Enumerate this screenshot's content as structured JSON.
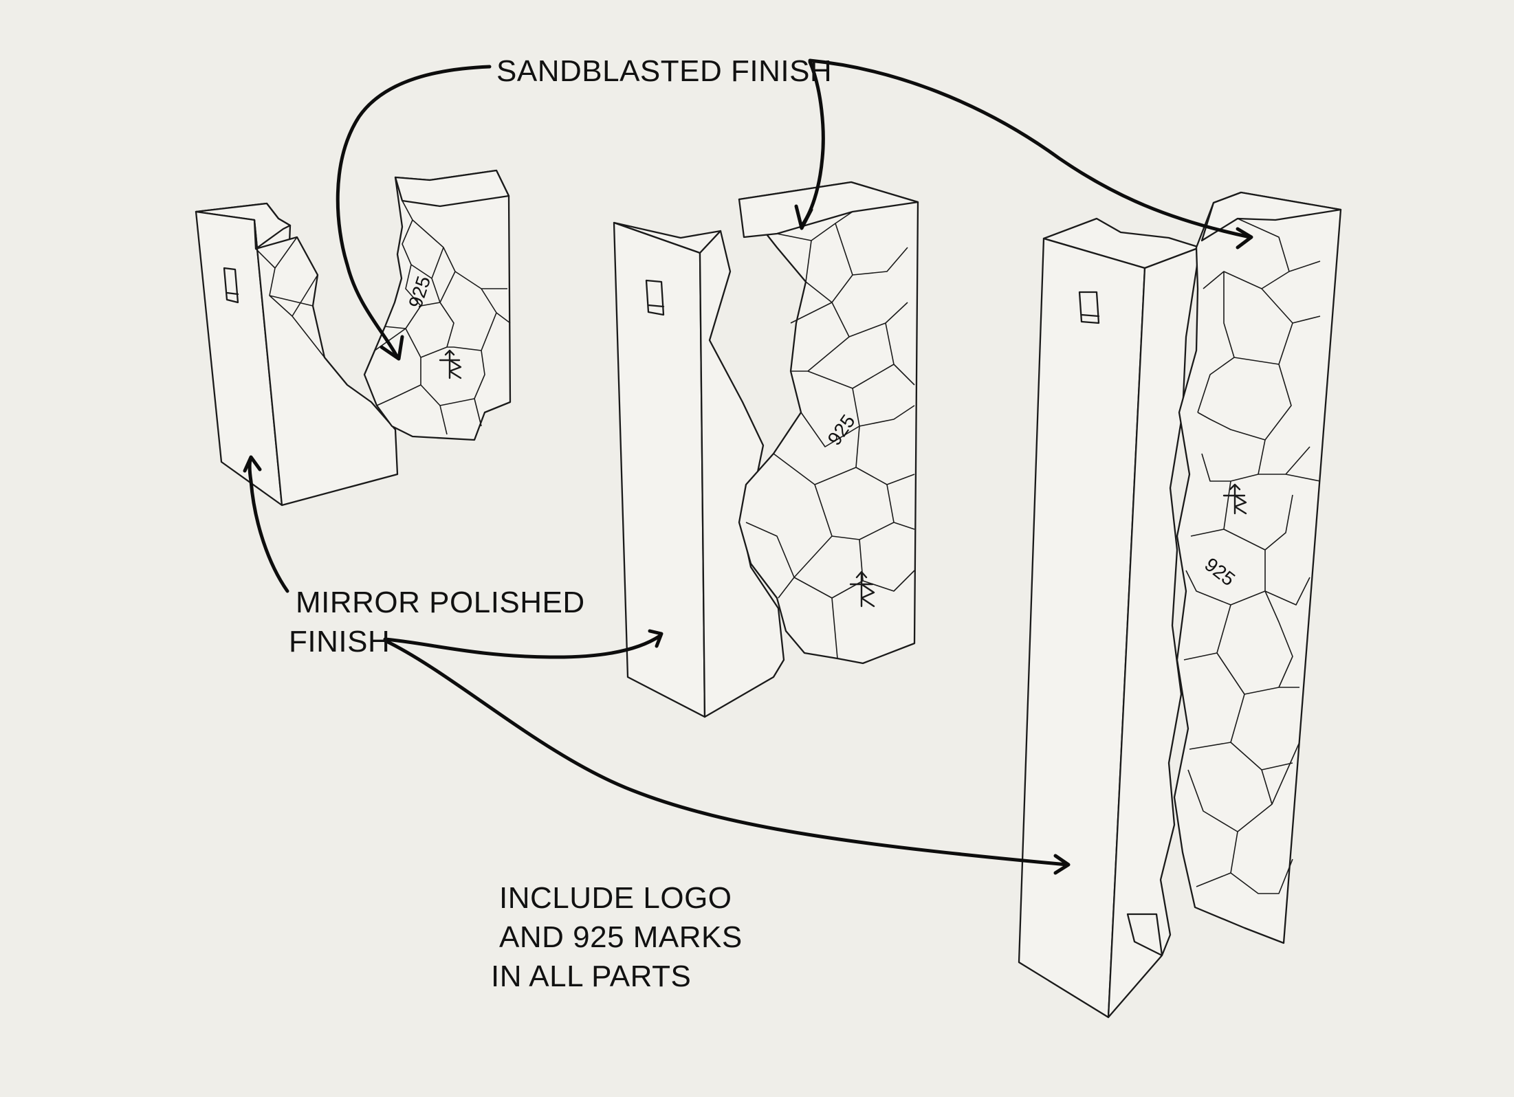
{
  "labels": {
    "sandblasted": "SANDBLASTED FINISH",
    "mirror_line1": "MIRROR POLISHED",
    "mirror_line2": "FINISH",
    "note_line1": "INCLUDE LOGO",
    "note_line2": "AND 925 MARKS",
    "note_line3": "IN ALL PARTS"
  },
  "marks": {
    "small": "925",
    "medium": "925",
    "large": "925"
  },
  "colors": {
    "paper": "#efeee9",
    "ink": "#1a1a1a"
  }
}
